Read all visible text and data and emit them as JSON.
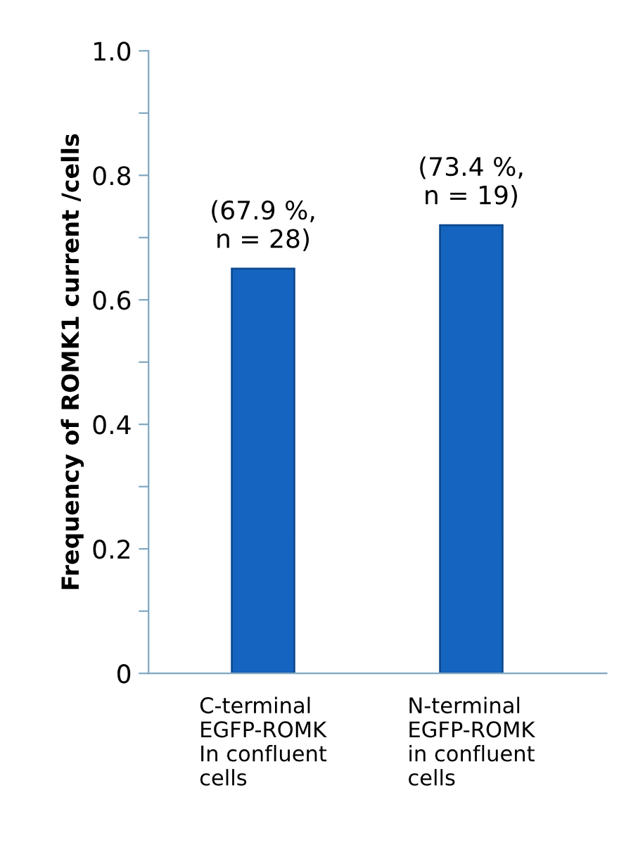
{
  "chart_data": {
    "type": "bar",
    "ylabel": "Frequency of ROMK1 current /cells",
    "categories": [
      "C-terminal\nEGFP-ROMK\nIn confluent\ncells",
      "N-terminal\nEGFP-ROMK\nin confluent\ncells"
    ],
    "values": [
      0.65,
      0.72
    ],
    "color": "#1565c0",
    "annotations": [
      {
        "text": "(67.9 %,\nn = 28)",
        "x": "C-terminal\nEGFP-ROMK\nIn confluent\ncells",
        "y": 0.65
      },
      {
        "text": "(73.4 %,\nn = 19)",
        "x": "N-terminal\nEGFP-ROMK\nin confluent\ncells",
        "y": 0.72
      }
    ],
    "ylim": [
      0,
      1.0
    ],
    "yticks": [
      0,
      {
        "value": 0.1,
        "label": null
      },
      0.2,
      {
        "value": 0.3,
        "label": null
      },
      0.4,
      {
        "value": 0.5,
        "label": null
      },
      0.6,
      {
        "value": 0.7,
        "label": null
      },
      0.8,
      {
        "value": 0.9,
        "label": null
      },
      {
        "value": 1.0,
        "label": "1.0"
      }
    ],
    "grid": false
  }
}
